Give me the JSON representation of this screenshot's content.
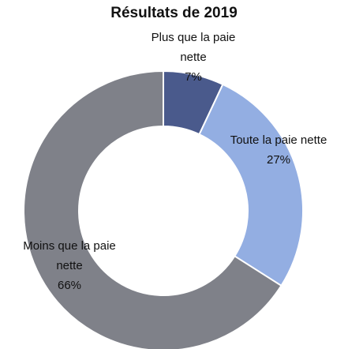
{
  "chart_data": {
    "type": "donut",
    "title": "Résultats de 2019",
    "categories": [
      "Plus que la paie nette",
      "Toute la paie nette",
      "Moins que la paie nette"
    ],
    "values": [
      7,
      27,
      66
    ],
    "value_labels": [
      "7%",
      "27%",
      "66%"
    ],
    "colors": [
      "#4a5a8c",
      "#93aee2",
      "#7f8189"
    ]
  }
}
